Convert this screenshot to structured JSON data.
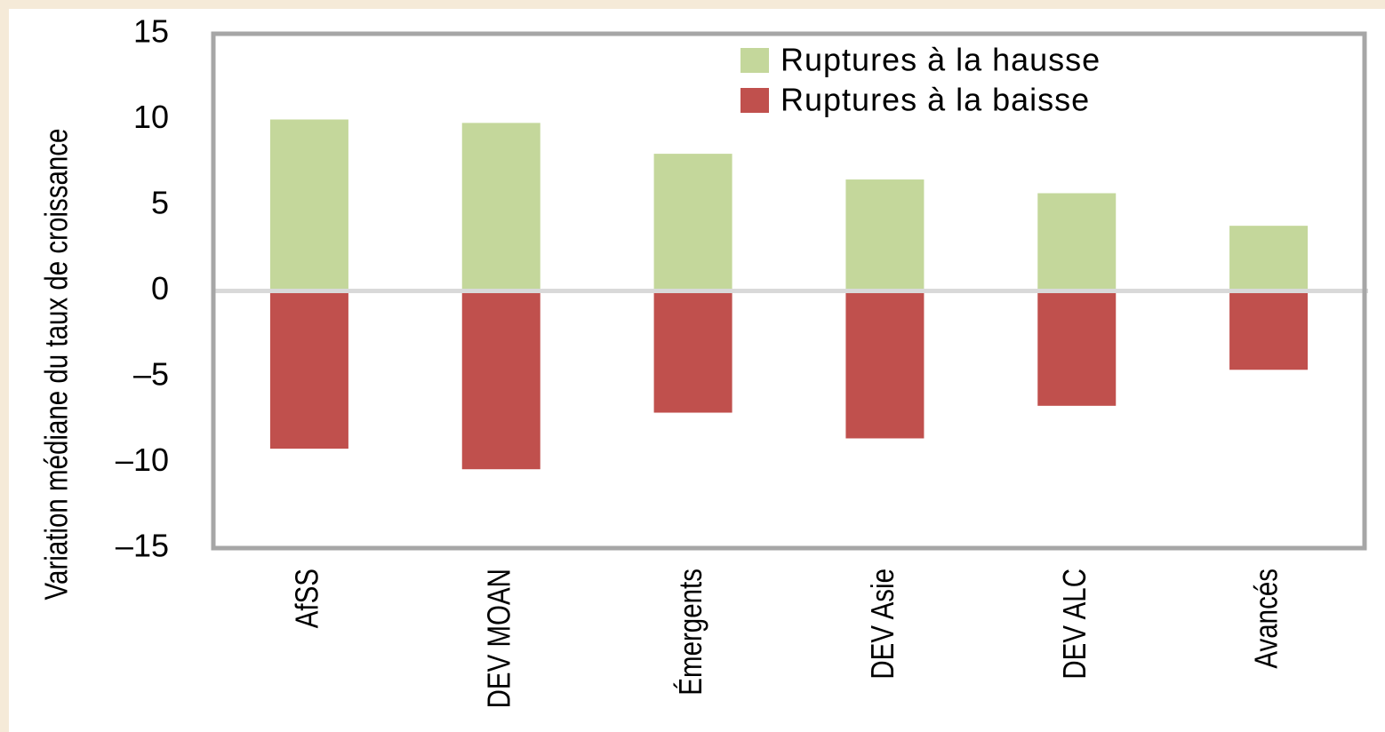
{
  "chart_data": {
    "type": "bar",
    "y_label": "Variation médiane du taux de croissance",
    "categories": [
      "AfSS",
      "DEV MOAN",
      "Émergents",
      "DEV Asie",
      "DEV ALC",
      "Avancés"
    ],
    "series": [
      {
        "name": "Ruptures à la hausse",
        "color": "#c4d79b",
        "values": [
          10,
          9.8,
          8,
          6.5,
          5.7,
          3.8
        ]
      },
      {
        "name": "Ruptures à la baisse",
        "color": "#c0504d",
        "values": [
          -9.2,
          -10.4,
          -7.1,
          -8.6,
          -6.7,
          -4.6
        ]
      }
    ],
    "ylim": [
      -15,
      15
    ],
    "yticks": [
      {
        "value": -15,
        "label": "–15"
      },
      {
        "value": -10,
        "label": "–10"
      },
      {
        "value": -5,
        "label": "–5"
      },
      0,
      5,
      10,
      15
    ],
    "legend": "top-right",
    "grid": false
  }
}
